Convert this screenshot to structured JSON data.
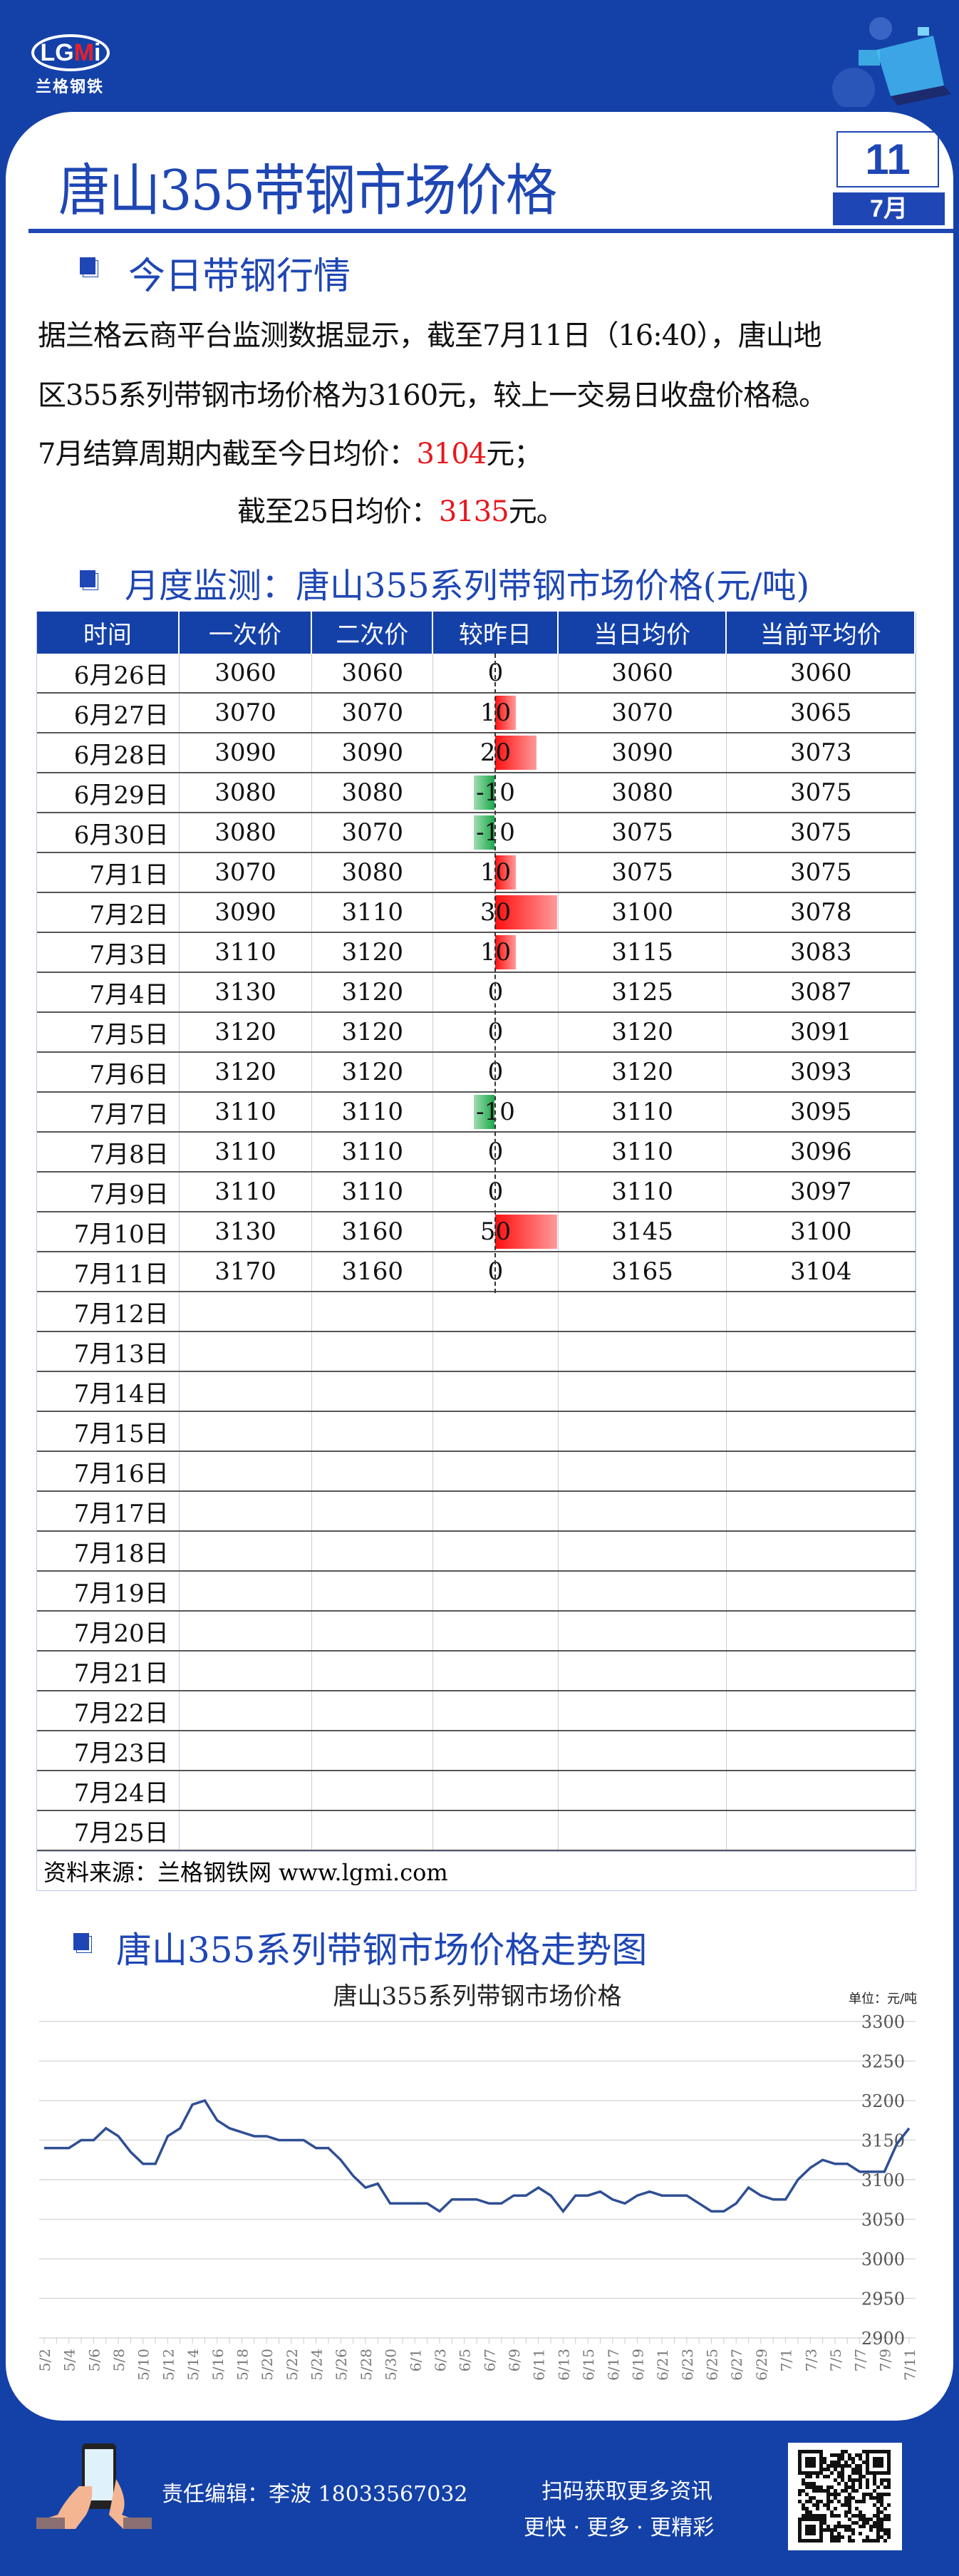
{
  "logo": {
    "text_l": "LG",
    "text_m": "M",
    "text_i": "i",
    "subtitle": "兰格钢铁"
  },
  "header": {
    "title": "唐山355带钢市场价格",
    "day": "11",
    "month": "7月"
  },
  "today": {
    "heading": "今日带钢行情",
    "line1": "据兰格云商平台监测数据显示，截至7月11日（16:40），唐山地",
    "line2": "区355系列带钢市场价格为3160元，较上一交易日收盘价格稳。",
    "line3_prefix": "7月结算周期内截至今日均价：",
    "line3_value": "3104",
    "line3_suffix": "元；",
    "line4_prefix": "截至25日均价：",
    "line4_value": "3135",
    "line4_suffix": "元。"
  },
  "monthly": {
    "heading": "月度监测：唐山355系列带钢市场价格(元/吨)",
    "columns": [
      "时间",
      "一次价",
      "二次价",
      "较昨日",
      "当日均价",
      "当前平均价"
    ],
    "rows": [
      [
        "6月26日",
        "3060",
        "3060",
        "0",
        "3060",
        "3060"
      ],
      [
        "6月27日",
        "3070",
        "3070",
        "10",
        "3070",
        "3065"
      ],
      [
        "6月28日",
        "3090",
        "3090",
        "20",
        "3090",
        "3073"
      ],
      [
        "6月29日",
        "3080",
        "3080",
        "-10",
        "3080",
        "3075"
      ],
      [
        "6月30日",
        "3080",
        "3070",
        "-10",
        "3075",
        "3075"
      ],
      [
        "7月1日",
        "3070",
        "3080",
        "10",
        "3075",
        "3075"
      ],
      [
        "7月2日",
        "3090",
        "3110",
        "30",
        "3100",
        "3078"
      ],
      [
        "7月3日",
        "3110",
        "3120",
        "10",
        "3115",
        "3083"
      ],
      [
        "7月4日",
        "3130",
        "3120",
        "0",
        "3125",
        "3087"
      ],
      [
        "7月5日",
        "3120",
        "3120",
        "0",
        "3120",
        "3091"
      ],
      [
        "7月6日",
        "3120",
        "3120",
        "0",
        "3120",
        "3093"
      ],
      [
        "7月7日",
        "3110",
        "3110",
        "-10",
        "3110",
        "3095"
      ],
      [
        "7月8日",
        "3110",
        "3110",
        "0",
        "3110",
        "3096"
      ],
      [
        "7月9日",
        "3110",
        "3110",
        "0",
        "3110",
        "3097"
      ],
      [
        "7月10日",
        "3130",
        "3160",
        "50",
        "3145",
        "3100"
      ],
      [
        "7月11日",
        "3170",
        "3160",
        "0",
        "3165",
        "3104"
      ],
      [
        "7月12日",
        "",
        "",
        "",
        "",
        ""
      ],
      [
        "7月13日",
        "",
        "",
        "",
        "",
        ""
      ],
      [
        "7月14日",
        "",
        "",
        "",
        "",
        ""
      ],
      [
        "7月15日",
        "",
        "",
        "",
        "",
        ""
      ],
      [
        "7月16日",
        "",
        "",
        "",
        "",
        ""
      ],
      [
        "7月17日",
        "",
        "",
        "",
        "",
        ""
      ],
      [
        "7月18日",
        "",
        "",
        "",
        "",
        ""
      ],
      [
        "7月19日",
        "",
        "",
        "",
        "",
        ""
      ],
      [
        "7月20日",
        "",
        "",
        "",
        "",
        ""
      ],
      [
        "7月21日",
        "",
        "",
        "",
        "",
        ""
      ],
      [
        "7月22日",
        "",
        "",
        "",
        "",
        ""
      ],
      [
        "7月23日",
        "",
        "",
        "",
        "",
        ""
      ],
      [
        "7月24日",
        "",
        "",
        "",
        "",
        ""
      ],
      [
        "7月25日",
        "",
        "",
        "",
        "",
        ""
      ]
    ],
    "source": "资料来源：兰格钢铁网 www.lgmi.com",
    "colors": {
      "up": "#ff1010",
      "down": "#1aa84a",
      "header": "#1441a8"
    }
  },
  "trend": {
    "heading": "唐山355系列带钢市场价格走势图"
  },
  "chart_data": {
    "type": "line",
    "title": "唐山355系列带钢市场价格",
    "unit": "单位：元/吨",
    "ylim": [
      2900,
      3300
    ],
    "yticks": [
      2900,
      2950,
      3000,
      3050,
      3100,
      3150,
      3200,
      3250,
      3300
    ],
    "grid": true,
    "color": "#2f4f94",
    "x": [
      "5/2",
      "5/3",
      "5/4",
      "5/5",
      "5/6",
      "5/7",
      "5/8",
      "5/9",
      "5/10",
      "5/11",
      "5/12",
      "5/13",
      "5/14",
      "5/15",
      "5/16",
      "5/17",
      "5/18",
      "5/19",
      "5/20",
      "5/21",
      "5/22",
      "5/23",
      "5/24",
      "5/25",
      "5/26",
      "5/27",
      "5/28",
      "5/29",
      "5/30",
      "5/31",
      "6/1",
      "6/2",
      "6/3",
      "6/4",
      "6/5",
      "6/6",
      "6/7",
      "6/8",
      "6/9",
      "6/10",
      "6/11",
      "6/12",
      "6/13",
      "6/14",
      "6/15",
      "6/16",
      "6/17",
      "6/18",
      "6/19",
      "6/20",
      "6/21",
      "6/22",
      "6/23",
      "6/24",
      "6/25",
      "6/26",
      "6/27",
      "6/28",
      "6/29",
      "6/30",
      "7/1",
      "7/2",
      "7/3",
      "7/4",
      "7/5",
      "7/6",
      "7/7",
      "7/8",
      "7/9",
      "7/10",
      "7/11"
    ],
    "values": [
      3140,
      3140,
      3140,
      3150,
      3150,
      3165,
      3155,
      3135,
      3120,
      3120,
      3155,
      3165,
      3195,
      3200,
      3175,
      3165,
      3160,
      3155,
      3155,
      3150,
      3150,
      3150,
      3140,
      3140,
      3125,
      3105,
      3090,
      3095,
      3070,
      3070,
      3070,
      3070,
      3060,
      3075,
      3075,
      3075,
      3070,
      3070,
      3080,
      3080,
      3090,
      3080,
      3060,
      3080,
      3080,
      3085,
      3075,
      3070,
      3080,
      3085,
      3080,
      3080,
      3080,
      3070,
      3060,
      3060,
      3070,
      3090,
      3080,
      3075,
      3075,
      3100,
      3115,
      3125,
      3120,
      3120,
      3110,
      3110,
      3110,
      3145,
      3165
    ]
  },
  "footer": {
    "editor": "责任编辑：李波  18033567032",
    "scan": "扫码获取更多资讯",
    "slogan": "更快 · 更多 · 更精彩"
  }
}
